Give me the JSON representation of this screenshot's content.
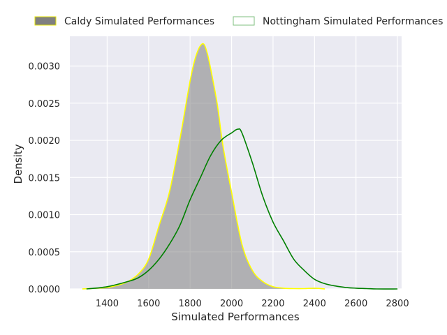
{
  "chart_data": {
    "type": "area",
    "title": "",
    "xlabel": "Simulated Performances",
    "ylabel": "Density",
    "xlim": [
      1220,
      2820
    ],
    "ylim": [
      0,
      0.0034
    ],
    "x_ticks": [
      1400,
      1600,
      1800,
      2000,
      2200,
      2400,
      2600,
      2800
    ],
    "y_ticks": [
      0.0,
      0.0005,
      0.001,
      0.0015,
      0.002,
      0.0025,
      0.003
    ],
    "y_tick_labels": [
      "0.0000",
      "0.0005",
      "0.0010",
      "0.0015",
      "0.0020",
      "0.0025",
      "0.0030"
    ],
    "grid": true,
    "legend_position": "top",
    "series": [
      {
        "name": "Caldy Simulated Performances",
        "style": "filled",
        "fill_color": "#808080",
        "line_color": "#ffff00",
        "x": [
          1280,
          1350,
          1400,
          1450,
          1500,
          1550,
          1600,
          1650,
          1700,
          1750,
          1800,
          1830,
          1860,
          1880,
          1900,
          1930,
          1960,
          2000,
          2050,
          2100,
          2150,
          2200,
          2250,
          2300,
          2350,
          2400,
          2450
        ],
        "y": [
          0.0,
          1e-05,
          2e-05,
          5e-05,
          0.0001,
          0.0002,
          0.0004,
          0.00085,
          0.0013,
          0.002,
          0.0028,
          0.00315,
          0.0033,
          0.0032,
          0.00295,
          0.0025,
          0.0019,
          0.0013,
          0.0006,
          0.00025,
          0.0001,
          3e-05,
          1e-05,
          5e-06,
          5e-06,
          1e-05,
          0.0
        ]
      },
      {
        "name": "Nottingham Simulated Performances",
        "style": "line",
        "line_color": "#008000",
        "x": [
          1300,
          1400,
          1500,
          1550,
          1600,
          1650,
          1700,
          1750,
          1800,
          1850,
          1900,
          1950,
          2000,
          2030,
          2050,
          2100,
          2150,
          2200,
          2250,
          2300,
          2350,
          2400,
          2450,
          2500,
          2550,
          2600,
          2650,
          2700,
          2800
        ],
        "y": [
          0.0,
          3e-05,
          0.0001,
          0.00015,
          0.00025,
          0.0004,
          0.0006,
          0.00085,
          0.0012,
          0.0015,
          0.0018,
          0.002,
          0.0021,
          0.00215,
          0.0021,
          0.0017,
          0.00125,
          0.0009,
          0.00065,
          0.0004,
          0.00025,
          0.00013,
          7e-05,
          4e-05,
          2e-05,
          1e-05,
          5e-06,
          0.0,
          0.0
        ]
      }
    ]
  }
}
